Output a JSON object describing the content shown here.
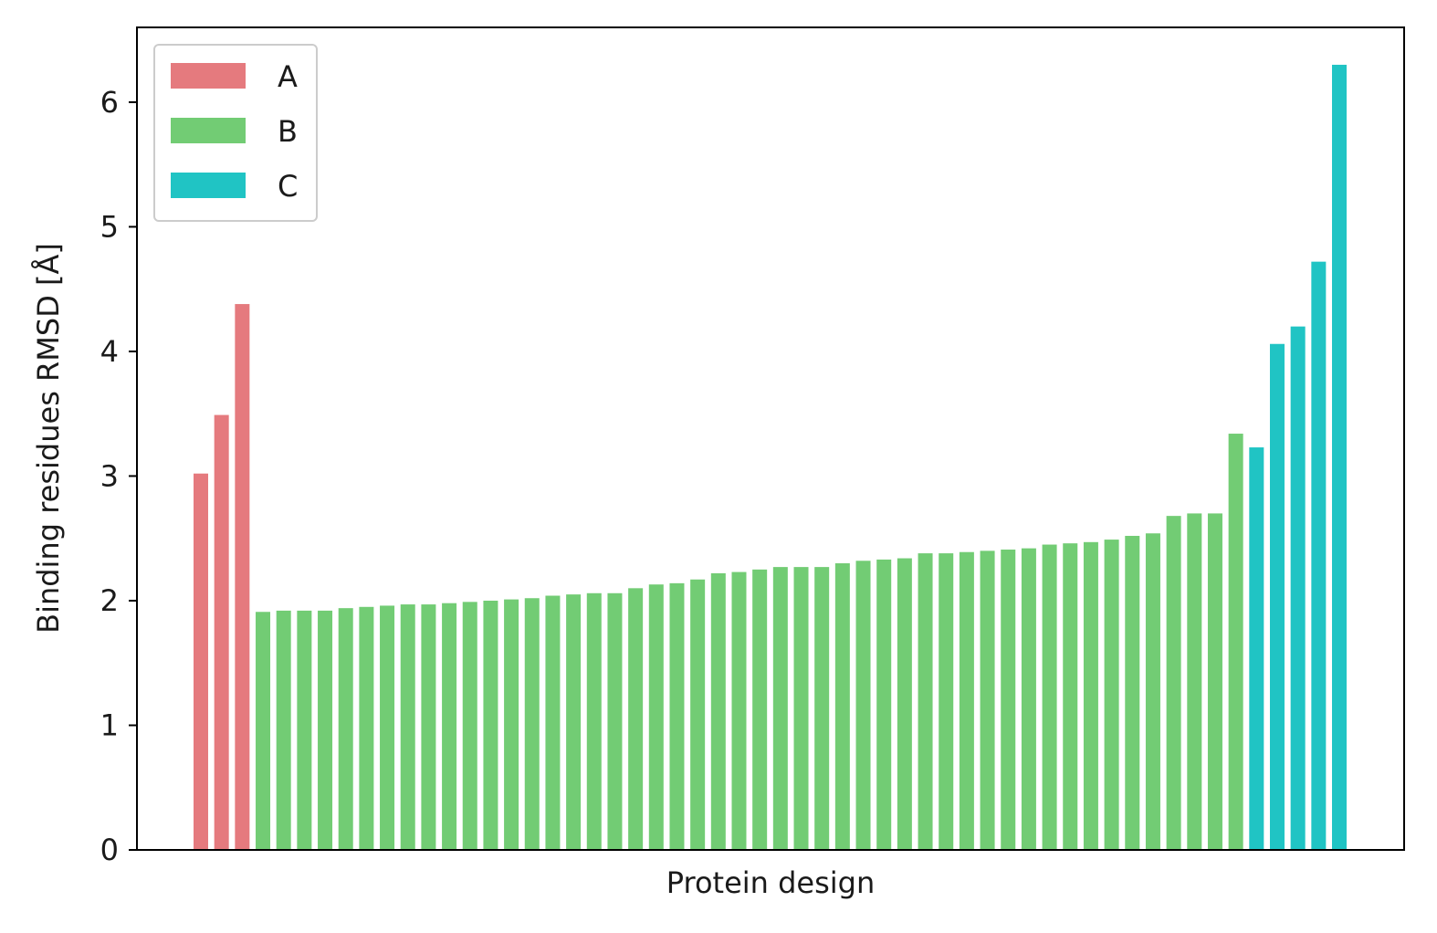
{
  "chart_data": {
    "type": "bar",
    "xlabel": "Protein design",
    "ylabel": "Binding residues RMSD [Å]",
    "ylim": [
      0,
      6.6
    ],
    "yticks": [
      "0",
      "1",
      "2",
      "3",
      "4",
      "5",
      "6"
    ],
    "grid": false,
    "legend_position": "top-left",
    "series": [
      {
        "name": "A",
        "color": "#e57a7e",
        "values": [
          3.02,
          3.49,
          4.38
        ]
      },
      {
        "name": "B",
        "color": "#72cc74",
        "values": [
          1.91,
          1.92,
          1.92,
          1.92,
          1.94,
          1.95,
          1.96,
          1.97,
          1.97,
          1.98,
          1.99,
          2.0,
          2.01,
          2.02,
          2.04,
          2.05,
          2.06,
          2.06,
          2.1,
          2.13,
          2.14,
          2.17,
          2.22,
          2.23,
          2.25,
          2.27,
          2.27,
          2.27,
          2.3,
          2.32,
          2.33,
          2.34,
          2.38,
          2.38,
          2.39,
          2.4,
          2.41,
          2.42,
          2.45,
          2.46,
          2.47,
          2.49,
          2.52,
          2.54,
          2.68,
          2.7,
          2.7,
          3.34
        ]
      },
      {
        "name": "C",
        "color": "#20c4c4",
        "values": [
          3.23,
          4.06,
          4.2,
          4.72,
          6.3
        ]
      }
    ]
  }
}
